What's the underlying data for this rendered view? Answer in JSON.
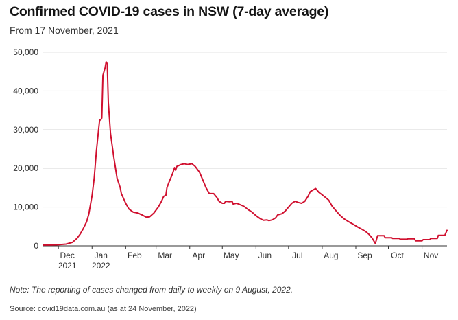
{
  "chart_data": {
    "type": "line",
    "title": "Confirmed COVID-19 cases in NSW (7-day average)",
    "subtitle": "From 17 November, 2021",
    "xlabel": "",
    "ylabel": "",
    "ylim": [
      0,
      50000
    ],
    "xlim": [
      "2021-11-17",
      "2022-11-24"
    ],
    "yticks": [
      0,
      10000,
      20000,
      30000,
      40000,
      50000
    ],
    "ytick_labels": [
      "0",
      "10,000",
      "20,000",
      "30,000",
      "40,000",
      "50,000"
    ],
    "xticks": [
      {
        "date": "2021-12-01",
        "label": [
          "Dec",
          "2021"
        ]
      },
      {
        "date": "2022-01-01",
        "label": [
          "Jan",
          "2022"
        ]
      },
      {
        "date": "2022-02-01",
        "label": [
          "Feb"
        ]
      },
      {
        "date": "2022-03-01",
        "label": [
          "Mar"
        ]
      },
      {
        "date": "2022-04-01",
        "label": [
          "Apr"
        ]
      },
      {
        "date": "2022-05-01",
        "label": [
          "May"
        ]
      },
      {
        "date": "2022-06-01",
        "label": [
          "Jun"
        ]
      },
      {
        "date": "2022-07-01",
        "label": [
          "Jul"
        ]
      },
      {
        "date": "2022-08-01",
        "label": [
          "Aug"
        ]
      },
      {
        "date": "2022-09-01",
        "label": [
          "Sep"
        ]
      },
      {
        "date": "2022-10-01",
        "label": [
          "Oct"
        ]
      },
      {
        "date": "2022-11-01",
        "label": [
          "Nov"
        ]
      }
    ],
    "grid": true,
    "legend": "none",
    "series": [
      {
        "color": "#d0102f",
        "points": [
          [
            "2021-11-17",
            200
          ],
          [
            "2021-11-25",
            220
          ],
          [
            "2021-12-01",
            280
          ],
          [
            "2021-12-08",
            450
          ],
          [
            "2021-12-14",
            900
          ],
          [
            "2021-12-18",
            1900
          ],
          [
            "2021-12-21",
            3000
          ],
          [
            "2021-12-24",
            4500
          ],
          [
            "2021-12-27",
            6200
          ],
          [
            "2021-12-29",
            8200
          ],
          [
            "2022-01-01",
            13000
          ],
          [
            "2022-01-03",
            17500
          ],
          [
            "2022-01-05",
            24500
          ],
          [
            "2022-01-07",
            30000
          ],
          [
            "2022-01-08",
            32500
          ],
          [
            "2022-01-09",
            32500
          ],
          [
            "2022-01-10",
            33000
          ],
          [
            "2022-01-11",
            44000
          ],
          [
            "2022-01-12",
            45000
          ],
          [
            "2022-01-13",
            46000
          ],
          [
            "2022-01-14",
            47500
          ],
          [
            "2022-01-15",
            47000
          ],
          [
            "2022-01-16",
            37000
          ],
          [
            "2022-01-18",
            29000
          ],
          [
            "2022-01-21",
            23000
          ],
          [
            "2022-01-24",
            17500
          ],
          [
            "2022-01-27",
            15000
          ],
          [
            "2022-01-28",
            13500
          ],
          [
            "2022-02-01",
            11000
          ],
          [
            "2022-02-04",
            9500
          ],
          [
            "2022-02-08",
            8700
          ],
          [
            "2022-02-12",
            8500
          ],
          [
            "2022-02-16",
            8000
          ],
          [
            "2022-02-20",
            7400
          ],
          [
            "2022-02-23",
            7500
          ],
          [
            "2022-02-27",
            8500
          ],
          [
            "2022-03-03",
            10000
          ],
          [
            "2022-03-06",
            11500
          ],
          [
            "2022-03-08",
            12800
          ],
          [
            "2022-03-10",
            13000
          ],
          [
            "2022-03-11",
            15000
          ],
          [
            "2022-03-13",
            16500
          ],
          [
            "2022-03-16",
            18500
          ],
          [
            "2022-03-18",
            20200
          ],
          [
            "2022-03-19",
            19500
          ],
          [
            "2022-03-20",
            20500
          ],
          [
            "2022-03-24",
            21000
          ],
          [
            "2022-03-27",
            21200
          ],
          [
            "2022-03-30",
            21000
          ],
          [
            "2022-04-03",
            21200
          ],
          [
            "2022-04-06",
            20500
          ],
          [
            "2022-04-10",
            19000
          ],
          [
            "2022-04-13",
            17000
          ],
          [
            "2022-04-16",
            15000
          ],
          [
            "2022-04-19",
            13500
          ],
          [
            "2022-04-23",
            13500
          ],
          [
            "2022-04-26",
            12500
          ],
          [
            "2022-04-28",
            11500
          ],
          [
            "2022-05-01",
            11000
          ],
          [
            "2022-05-03",
            11000
          ],
          [
            "2022-05-04",
            11500
          ],
          [
            "2022-05-08",
            11400
          ],
          [
            "2022-05-10",
            11500
          ],
          [
            "2022-05-11",
            10800
          ],
          [
            "2022-05-14",
            11000
          ],
          [
            "2022-05-16",
            10800
          ],
          [
            "2022-05-21",
            10200
          ],
          [
            "2022-05-25",
            9300
          ],
          [
            "2022-05-28",
            8800
          ],
          [
            "2022-06-01",
            7800
          ],
          [
            "2022-06-05",
            7000
          ],
          [
            "2022-06-08",
            6600
          ],
          [
            "2022-06-11",
            6700
          ],
          [
            "2022-06-13",
            6500
          ],
          [
            "2022-06-16",
            6700
          ],
          [
            "2022-06-19",
            7200
          ],
          [
            "2022-06-21",
            8000
          ],
          [
            "2022-06-25",
            8300
          ],
          [
            "2022-06-28",
            9000
          ],
          [
            "2022-07-01",
            10000
          ],
          [
            "2022-07-04",
            11000
          ],
          [
            "2022-07-07",
            11500
          ],
          [
            "2022-07-10",
            11200
          ],
          [
            "2022-07-13",
            11000
          ],
          [
            "2022-07-16",
            11500
          ],
          [
            "2022-07-19",
            12800
          ],
          [
            "2022-07-21",
            14000
          ],
          [
            "2022-07-24",
            14500
          ],
          [
            "2022-07-26",
            14800
          ],
          [
            "2022-07-29",
            13800
          ],
          [
            "2022-08-01",
            13200
          ],
          [
            "2022-08-04",
            12500
          ],
          [
            "2022-08-07",
            11800
          ],
          [
            "2022-08-10",
            10300
          ],
          [
            "2022-08-13",
            9300
          ],
          [
            "2022-08-17",
            8000
          ],
          [
            "2022-08-21",
            7000
          ],
          [
            "2022-08-25",
            6300
          ],
          [
            "2022-08-30",
            5500
          ],
          [
            "2022-09-03",
            4800
          ],
          [
            "2022-09-07",
            4200
          ],
          [
            "2022-09-10",
            3700
          ],
          [
            "2022-09-13",
            3000
          ],
          [
            "2022-09-16",
            2000
          ],
          [
            "2022-09-19",
            600
          ],
          [
            "2022-09-21",
            2600
          ],
          [
            "2022-09-27",
            2600
          ],
          [
            "2022-09-28",
            2100
          ],
          [
            "2022-10-04",
            2100
          ],
          [
            "2022-10-05",
            1900
          ],
          [
            "2022-10-11",
            1900
          ],
          [
            "2022-10-12",
            1700
          ],
          [
            "2022-10-18",
            1700
          ],
          [
            "2022-10-19",
            1800
          ],
          [
            "2022-10-25",
            1800
          ],
          [
            "2022-10-26",
            1300
          ],
          [
            "2022-11-01",
            1300
          ],
          [
            "2022-11-02",
            1600
          ],
          [
            "2022-11-08",
            1600
          ],
          [
            "2022-11-09",
            1900
          ],
          [
            "2022-11-15",
            1900
          ],
          [
            "2022-11-16",
            2700
          ],
          [
            "2022-11-22",
            2700
          ],
          [
            "2022-11-24",
            4000
          ]
        ]
      }
    ]
  },
  "note": "Note: The reporting of cases changed from daily to weekly on 9 August, 2022.",
  "source": "Source: covid19data.com.au (as at 24 November, 2022)"
}
